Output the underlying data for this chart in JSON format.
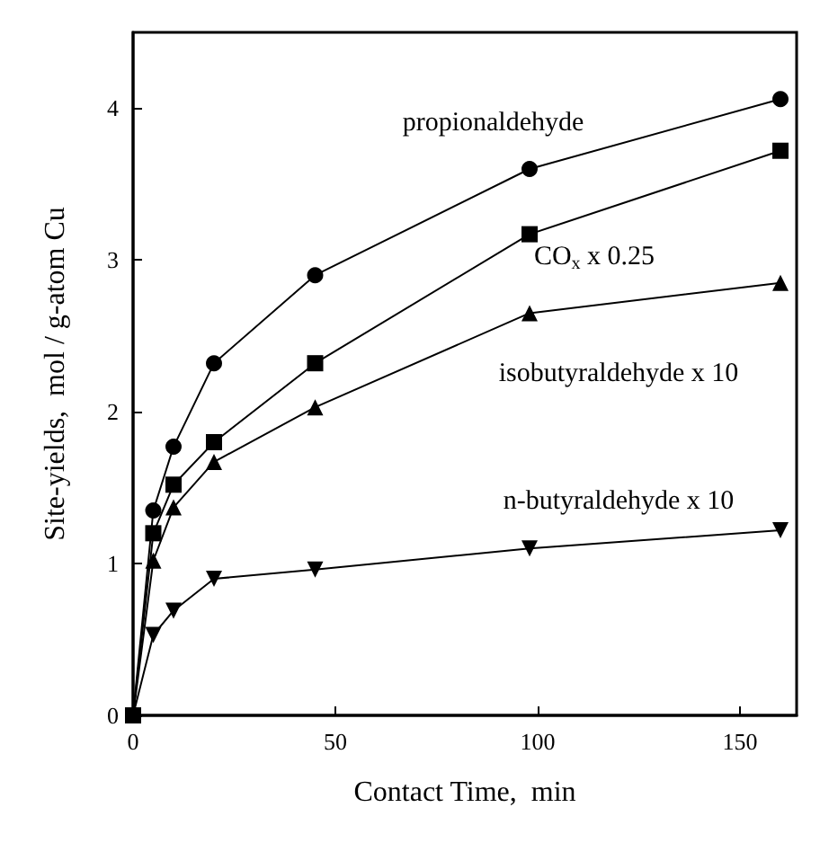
{
  "chart_data": {
    "type": "line",
    "xlabel": "Contact Time,  min",
    "ylabel": "Site-yields,  mol / g-atom Cu",
    "x": [
      0,
      5,
      10,
      20,
      45,
      98,
      160
    ],
    "series": [
      {
        "name": "propionaldehyde",
        "color": "#000000",
        "marker": "circle",
        "values": [
          0,
          1.35,
          1.77,
          2.32,
          2.9,
          3.6,
          4.06
        ]
      },
      {
        "name": "CO$_{x}$ x 0.25",
        "color": "#000000",
        "marker": "square",
        "values": [
          0,
          1.2,
          1.52,
          1.8,
          2.32,
          3.17,
          3.72
        ]
      },
      {
        "name": "isobutyraldehyde x 10",
        "color": "#000000",
        "marker": "triangle",
        "values": [
          0,
          1.02,
          1.37,
          1.67,
          2.03,
          2.65,
          2.85
        ]
      },
      {
        "name": "n-butyraldehyde x 10",
        "color": "#000000",
        "marker": "triangle",
        "values": [
          0,
          0.53,
          0.69,
          0.9,
          0.96,
          1.1,
          1.22
        ]
      }
    ],
    "xlim": [
      0,
      164
    ],
    "xticks": [
      0,
      50,
      100,
      150
    ],
    "ylim": [
      0,
      4.5
    ],
    "yticks": [
      0,
      1,
      2,
      3,
      4
    ],
    "grid": false,
    "legend": false,
    "line_style": "solid"
  }
}
